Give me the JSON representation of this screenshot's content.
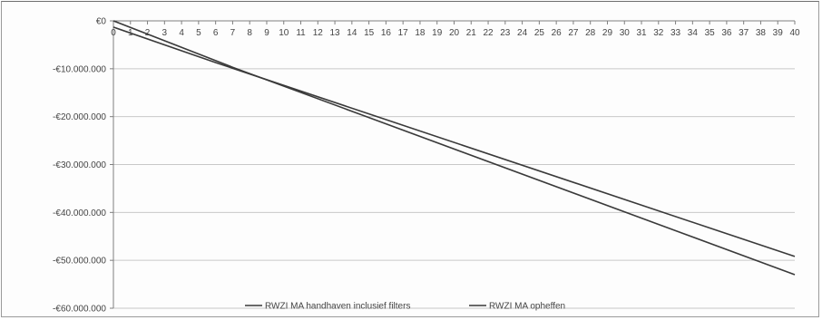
{
  "chart_data": {
    "type": "line",
    "title": "",
    "xlabel": "",
    "ylabel": "",
    "x": [
      0,
      1,
      2,
      3,
      4,
      5,
      6,
      7,
      8,
      9,
      10,
      11,
      12,
      13,
      14,
      15,
      16,
      17,
      18,
      19,
      20,
      21,
      22,
      23,
      24,
      25,
      26,
      27,
      28,
      29,
      30,
      31,
      32,
      33,
      34,
      35,
      36,
      37,
      38,
      39,
      40
    ],
    "xlim": [
      0,
      40
    ],
    "ylim": [
      -60000000,
      0
    ],
    "y_ticks": [
      0,
      -10000000,
      -20000000,
      -30000000,
      -40000000,
      -50000000,
      -60000000
    ],
    "y_tick_labels": [
      "€0",
      "-€10.000.000",
      "-€20.000.000",
      "-€30.000.000",
      "-€40.000.000",
      "-€50.000.000",
      "-€60.000.000"
    ],
    "x_tick_labels": [
      "0",
      "1",
      "2",
      "3",
      "4",
      "5",
      "6",
      "7",
      "8",
      "9",
      "10",
      "11",
      "12",
      "13",
      "14",
      "15",
      "16",
      "17",
      "18",
      "19",
      "20",
      "21",
      "22",
      "23",
      "24",
      "25",
      "26",
      "27",
      "28",
      "29",
      "30",
      "31",
      "32",
      "33",
      "34",
      "35",
      "36",
      "37",
      "38",
      "39",
      "40"
    ],
    "grid": true,
    "legend_position": "bottom",
    "series": [
      {
        "name": "RWZI MA handhaven inclusief filters",
        "points": [
          [
            0,
            -1300000
          ],
          [
            6,
            -8700000
          ],
          [
            40,
            -49200000
          ]
        ]
      },
      {
        "name": "RWZI MA opheffen",
        "points": [
          [
            0,
            0
          ],
          [
            7,
            -9700000
          ],
          [
            40,
            -53000000
          ]
        ]
      }
    ],
    "colors": {
      "line": "#3a3a3a",
      "grid": "#c8c8c8",
      "axis": "#7f7f7f"
    }
  }
}
